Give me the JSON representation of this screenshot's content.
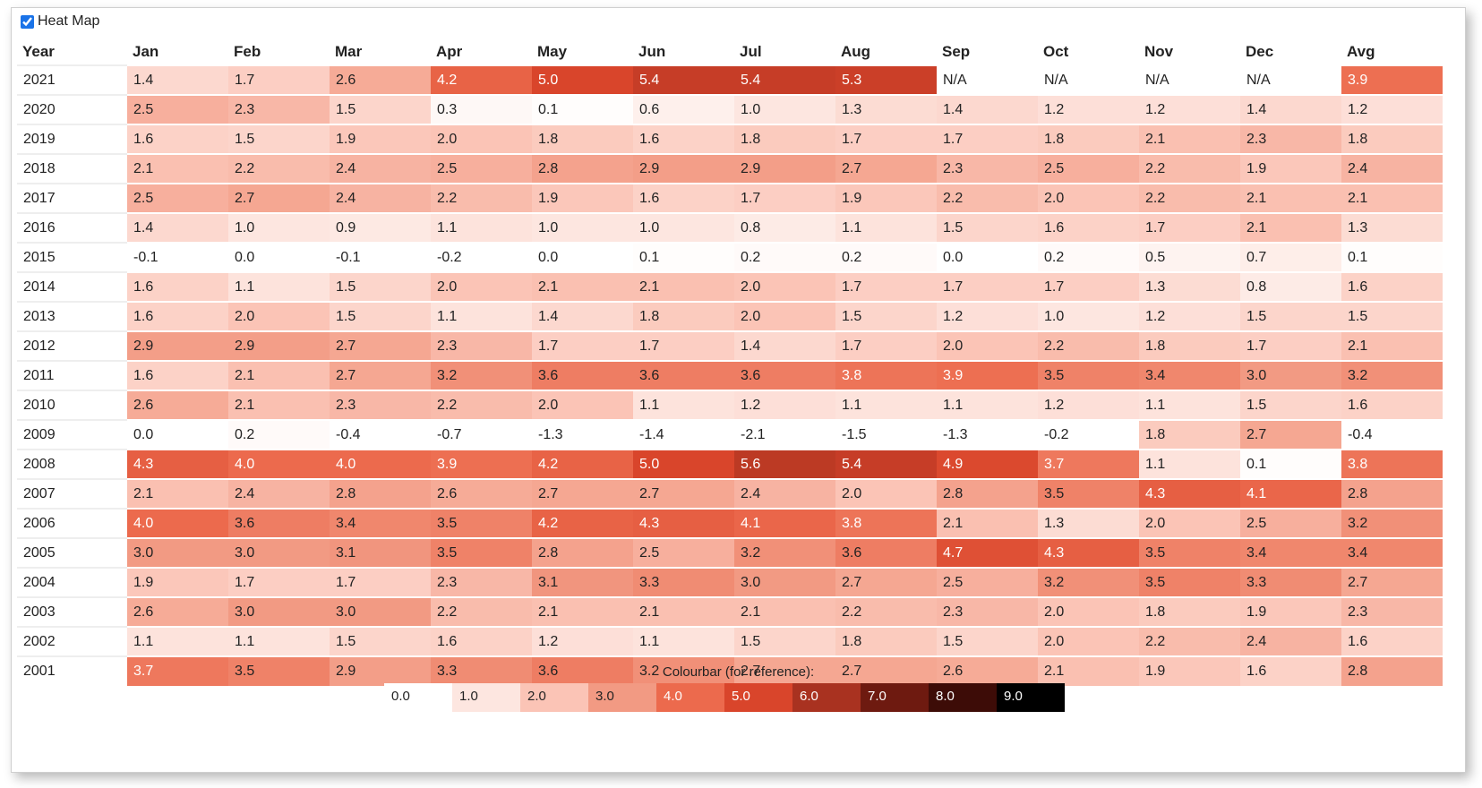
{
  "heatmap_toggle": {
    "label": "Heat Map",
    "checked": true
  },
  "table": {
    "year_header": "Year",
    "columns": [
      "Jan",
      "Feb",
      "Mar",
      "Apr",
      "May",
      "Jun",
      "Jul",
      "Aug",
      "Sep",
      "Oct",
      "Nov",
      "Dec",
      "Avg"
    ],
    "rows": [
      {
        "year": "2021",
        "values": [
          "1.4",
          "1.7",
          "2.6",
          "4.2",
          "5.0",
          "5.4",
          "5.4",
          "5.3",
          "N/A",
          "N/A",
          "N/A",
          "N/A",
          "3.9"
        ]
      },
      {
        "year": "2020",
        "values": [
          "2.5",
          "2.3",
          "1.5",
          "0.3",
          "0.1",
          "0.6",
          "1.0",
          "1.3",
          "1.4",
          "1.2",
          "1.2",
          "1.4",
          "1.2"
        ]
      },
      {
        "year": "2019",
        "values": [
          "1.6",
          "1.5",
          "1.9",
          "2.0",
          "1.8",
          "1.6",
          "1.8",
          "1.7",
          "1.7",
          "1.8",
          "2.1",
          "2.3",
          "1.8"
        ]
      },
      {
        "year": "2018",
        "values": [
          "2.1",
          "2.2",
          "2.4",
          "2.5",
          "2.8",
          "2.9",
          "2.9",
          "2.7",
          "2.3",
          "2.5",
          "2.2",
          "1.9",
          "2.4"
        ]
      },
      {
        "year": "2017",
        "values": [
          "2.5",
          "2.7",
          "2.4",
          "2.2",
          "1.9",
          "1.6",
          "1.7",
          "1.9",
          "2.2",
          "2.0",
          "2.2",
          "2.1",
          "2.1"
        ]
      },
      {
        "year": "2016",
        "values": [
          "1.4",
          "1.0",
          "0.9",
          "1.1",
          "1.0",
          "1.0",
          "0.8",
          "1.1",
          "1.5",
          "1.6",
          "1.7",
          "2.1",
          "1.3"
        ]
      },
      {
        "year": "2015",
        "values": [
          "-0.1",
          "0.0",
          "-0.1",
          "-0.2",
          "0.0",
          "0.1",
          "0.2",
          "0.2",
          "0.0",
          "0.2",
          "0.5",
          "0.7",
          "0.1"
        ]
      },
      {
        "year": "2014",
        "values": [
          "1.6",
          "1.1",
          "1.5",
          "2.0",
          "2.1",
          "2.1",
          "2.0",
          "1.7",
          "1.7",
          "1.7",
          "1.3",
          "0.8",
          "1.6"
        ]
      },
      {
        "year": "2013",
        "values": [
          "1.6",
          "2.0",
          "1.5",
          "1.1",
          "1.4",
          "1.8",
          "2.0",
          "1.5",
          "1.2",
          "1.0",
          "1.2",
          "1.5",
          "1.5"
        ]
      },
      {
        "year": "2012",
        "values": [
          "2.9",
          "2.9",
          "2.7",
          "2.3",
          "1.7",
          "1.7",
          "1.4",
          "1.7",
          "2.0",
          "2.2",
          "1.8",
          "1.7",
          "2.1"
        ]
      },
      {
        "year": "2011",
        "values": [
          "1.6",
          "2.1",
          "2.7",
          "3.2",
          "3.6",
          "3.6",
          "3.6",
          "3.8",
          "3.9",
          "3.5",
          "3.4",
          "3.0",
          "3.2"
        ]
      },
      {
        "year": "2010",
        "values": [
          "2.6",
          "2.1",
          "2.3",
          "2.2",
          "2.0",
          "1.1",
          "1.2",
          "1.1",
          "1.1",
          "1.2",
          "1.1",
          "1.5",
          "1.6"
        ]
      },
      {
        "year": "2009",
        "values": [
          "0.0",
          "0.2",
          "-0.4",
          "-0.7",
          "-1.3",
          "-1.4",
          "-2.1",
          "-1.5",
          "-1.3",
          "-0.2",
          "1.8",
          "2.7",
          "-0.4"
        ]
      },
      {
        "year": "2008",
        "values": [
          "4.3",
          "4.0",
          "4.0",
          "3.9",
          "4.2",
          "5.0",
          "5.6",
          "5.4",
          "4.9",
          "3.7",
          "1.1",
          "0.1",
          "3.8"
        ]
      },
      {
        "year": "2007",
        "values": [
          "2.1",
          "2.4",
          "2.8",
          "2.6",
          "2.7",
          "2.7",
          "2.4",
          "2.0",
          "2.8",
          "3.5",
          "4.3",
          "4.1",
          "2.8"
        ]
      },
      {
        "year": "2006",
        "values": [
          "4.0",
          "3.6",
          "3.4",
          "3.5",
          "4.2",
          "4.3",
          "4.1",
          "3.8",
          "2.1",
          "1.3",
          "2.0",
          "2.5",
          "3.2"
        ]
      },
      {
        "year": "2005",
        "values": [
          "3.0",
          "3.0",
          "3.1",
          "3.5",
          "2.8",
          "2.5",
          "3.2",
          "3.6",
          "4.7",
          "4.3",
          "3.5",
          "3.4",
          "3.4"
        ]
      },
      {
        "year": "2004",
        "values": [
          "1.9",
          "1.7",
          "1.7",
          "2.3",
          "3.1",
          "3.3",
          "3.0",
          "2.7",
          "2.5",
          "3.2",
          "3.5",
          "3.3",
          "2.7"
        ]
      },
      {
        "year": "2003",
        "values": [
          "2.6",
          "3.0",
          "3.0",
          "2.2",
          "2.1",
          "2.1",
          "2.1",
          "2.2",
          "2.3",
          "2.0",
          "1.8",
          "1.9",
          "2.3"
        ]
      },
      {
        "year": "2002",
        "values": [
          "1.1",
          "1.1",
          "1.5",
          "1.6",
          "1.2",
          "1.1",
          "1.5",
          "1.8",
          "1.5",
          "2.0",
          "2.2",
          "2.4",
          "1.6"
        ]
      },
      {
        "year": "2001",
        "values": [
          "3.7",
          "3.5",
          "2.9",
          "3.3",
          "3.6",
          "3.2",
          "2.7",
          "2.7",
          "2.6",
          "2.1",
          "1.9",
          "1.6",
          "2.8"
        ]
      }
    ]
  },
  "colourbar": {
    "title": "Colourbar (for reference):",
    "stops": [
      {
        "label": "0.0",
        "color": "#ffffff",
        "text_color": "#222222"
      },
      {
        "label": "1.0",
        "color": "#fde6e0",
        "text_color": "#222222"
      },
      {
        "label": "2.0",
        "color": "#fbc4b6",
        "text_color": "#222222"
      },
      {
        "label": "3.0",
        "color": "#f29a83",
        "text_color": "#222222"
      },
      {
        "label": "4.0",
        "color": "#ec6a4d",
        "text_color": "#ffffff"
      },
      {
        "label": "5.0",
        "color": "#d9452b",
        "text_color": "#ffffff"
      },
      {
        "label": "6.0",
        "color": "#a93220",
        "text_color": "#ffffff"
      },
      {
        "label": "7.0",
        "color": "#6e1a10",
        "text_color": "#ffffff"
      },
      {
        "label": "8.0",
        "color": "#3d0c07",
        "text_color": "#ffffff"
      },
      {
        "label": "9.0",
        "color": "#000000",
        "text_color": "#ffffff"
      }
    ]
  }
}
